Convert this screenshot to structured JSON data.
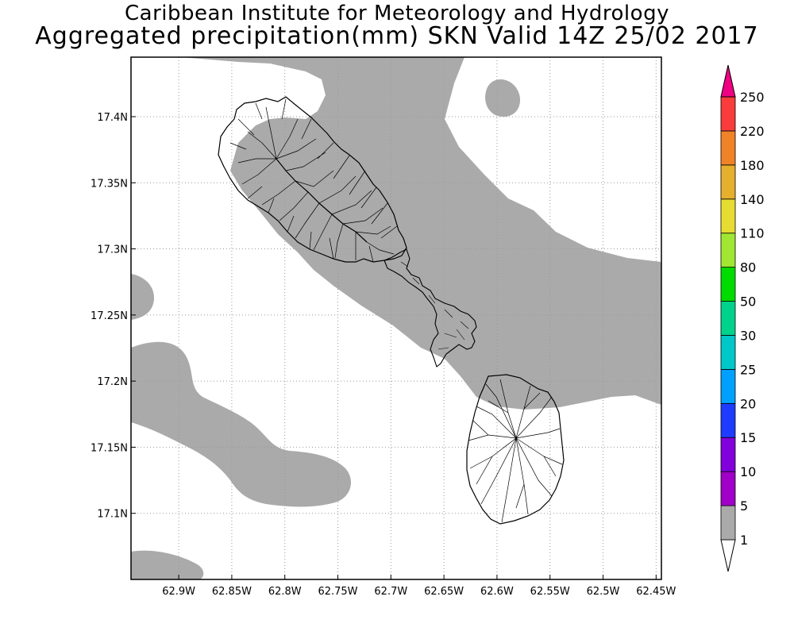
{
  "header": {
    "line1": "Caribbean Institute for Meteorology and Hydrology",
    "line2": "Aggregated precipitation(mm) SKN Valid 14Z 25/02 2017"
  },
  "map": {
    "lon_range": [
      -62.945,
      -62.445
    ],
    "lat_range": [
      17.05,
      17.445
    ],
    "x_ticks": [
      {
        "lon": -62.9,
        "label": "62.9W"
      },
      {
        "lon": -62.85,
        "label": "62.85W"
      },
      {
        "lon": -62.8,
        "label": "62.8W"
      },
      {
        "lon": -62.75,
        "label": "62.75W"
      },
      {
        "lon": -62.7,
        "label": "62.7W"
      },
      {
        "lon": -62.65,
        "label": "62.65W"
      },
      {
        "lon": -62.6,
        "label": "62.6W"
      },
      {
        "lon": -62.55,
        "label": "62.55W"
      },
      {
        "lon": -62.5,
        "label": "62.5W"
      },
      {
        "lon": -62.45,
        "label": "62.45W"
      }
    ],
    "y_ticks": [
      {
        "lat": 17.4,
        "label": "17.4N"
      },
      {
        "lat": 17.35,
        "label": "17.35N"
      },
      {
        "lat": 17.3,
        "label": "17.3N"
      },
      {
        "lat": 17.25,
        "label": "17.25N"
      },
      {
        "lat": 17.2,
        "label": "17.2N"
      },
      {
        "lat": 17.15,
        "label": "17.15N"
      },
      {
        "lat": 17.1,
        "label": "17.1N"
      }
    ],
    "grid": true,
    "precip_fill_color": "#aaaaaa",
    "land": [
      "St Kitts",
      "Nevis"
    ]
  },
  "legend": {
    "placement": "right",
    "levels": [
      {
        "label": "1",
        "color": "#ffffff"
      },
      {
        "label": "5",
        "color": "#aaaaaa"
      },
      {
        "label": "10",
        "color": "#a000c8"
      },
      {
        "label": "15",
        "color": "#8200dc"
      },
      {
        "label": "20",
        "color": "#1e3cff"
      },
      {
        "label": "25",
        "color": "#00a0ff"
      },
      {
        "label": "30",
        "color": "#00c8c8"
      },
      {
        "label": "50",
        "color": "#00d28c"
      },
      {
        "label": "80",
        "color": "#00dc00"
      },
      {
        "label": "110",
        "color": "#a0e632"
      },
      {
        "label": "140",
        "color": "#e6dc32"
      },
      {
        "label": "180",
        "color": "#e6af2d"
      },
      {
        "label": "220",
        "color": "#f08228"
      },
      {
        "label": "250",
        "color": "#fa3c3c"
      }
    ],
    "top_arrow_color": "#f00082",
    "bottom_arrow_color": "#ffffff"
  }
}
